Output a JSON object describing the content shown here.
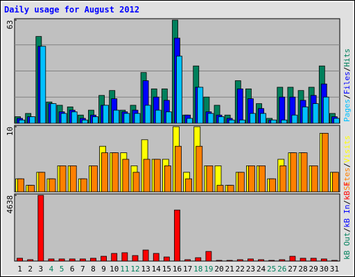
{
  "chart_data": [
    {
      "type": "bar",
      "title": "Daily usage for August 2012",
      "ylim": [
        0,
        63
      ],
      "yticks": [
        63
      ],
      "separator": "/",
      "series": [
        {
          "name": "Hits",
          "color": "#00805c",
          "values": [
            4,
            6,
            53,
            13,
            11,
            10,
            5,
            8,
            17,
            20,
            8,
            11,
            31,
            21,
            21,
            63,
            5,
            35,
            16,
            11,
            5,
            26,
            21,
            12,
            3,
            22,
            22,
            20,
            22,
            35,
            6
          ]
        },
        {
          "name": "Files",
          "color": "#0000ff",
          "values": [
            3,
            4,
            47,
            12,
            7,
            8,
            3,
            5,
            11,
            15,
            7,
            8,
            26,
            16,
            14,
            52,
            5,
            22,
            7,
            5,
            3,
            21,
            15,
            9,
            2,
            16,
            16,
            14,
            17,
            24,
            4
          ]
        },
        {
          "name": "Pages",
          "color": "#00c0ff",
          "values": [
            2,
            4,
            47,
            12,
            6,
            7,
            2,
            4,
            11,
            8,
            6,
            6,
            11,
            8,
            7,
            41,
            3,
            22,
            6,
            4,
            2,
            2,
            6,
            6,
            2,
            2,
            5,
            10,
            12,
            16,
            3
          ]
        }
      ]
    },
    {
      "type": "bar",
      "ylim": [
        0,
        10
      ],
      "yticks": [
        10
      ],
      "separator": "/",
      "series": [
        {
          "name": "Visits",
          "color": "#ffff00",
          "values": [
            2,
            1,
            3,
            2,
            4,
            4,
            2,
            4,
            7,
            6,
            6,
            4,
            8,
            5,
            5,
            10,
            3,
            10,
            4,
            4,
            1,
            3,
            4,
            4,
            2,
            5,
            6,
            6,
            4,
            9,
            3
          ]
        },
        {
          "name": "Sites",
          "color": "#ff8000",
          "values": [
            2,
            1,
            3,
            2,
            4,
            4,
            2,
            4,
            6,
            6,
            5,
            3,
            5,
            5,
            4,
            7,
            2,
            7,
            4,
            1,
            1,
            3,
            4,
            4,
            2,
            4,
            6,
            6,
            4,
            9,
            3
          ]
        }
      ]
    },
    {
      "type": "bar",
      "ylim": [
        0,
        4638
      ],
      "yticks": [
        4638
      ],
      "separator": "/",
      "categories": [
        "1",
        "2",
        "3",
        "4",
        "5",
        "6",
        "7",
        "8",
        "9",
        "10",
        "11",
        "12",
        "13",
        "14",
        "15",
        "16",
        "17",
        "18",
        "19",
        "20",
        "21",
        "22",
        "23",
        "24",
        "25",
        "26",
        "27",
        "28",
        "29",
        "30",
        "31"
      ],
      "category_colors": [
        "#000000",
        "#000000",
        "#000000",
        "#00805c",
        "#00805c",
        "#000000",
        "#000000",
        "#000000",
        "#000000",
        "#000000",
        "#00805c",
        "#00805c",
        "#000000",
        "#000000",
        "#000000",
        "#000000",
        "#000000",
        "#00805c",
        "#00805c",
        "#000000",
        "#000000",
        "#000000",
        "#000000",
        "#000000",
        "#00805c",
        "#00805c",
        "#000000",
        "#000000",
        "#000000",
        "#000000",
        "#000000"
      ],
      "series": [
        {
          "name": "kB F",
          "color": "#ff0000",
          "values": [
            200,
            100,
            4638,
            150,
            150,
            150,
            150,
            200,
            340,
            540,
            590,
            390,
            780,
            540,
            290,
            3600,
            100,
            240,
            680,
            50,
            50,
            100,
            150,
            100,
            50,
            100,
            340,
            200,
            200,
            150,
            50
          ]
        },
        {
          "name": "kB In",
          "color": "#0000ff"
        },
        {
          "name": "kB Out",
          "color": "#00805c"
        }
      ]
    }
  ]
}
